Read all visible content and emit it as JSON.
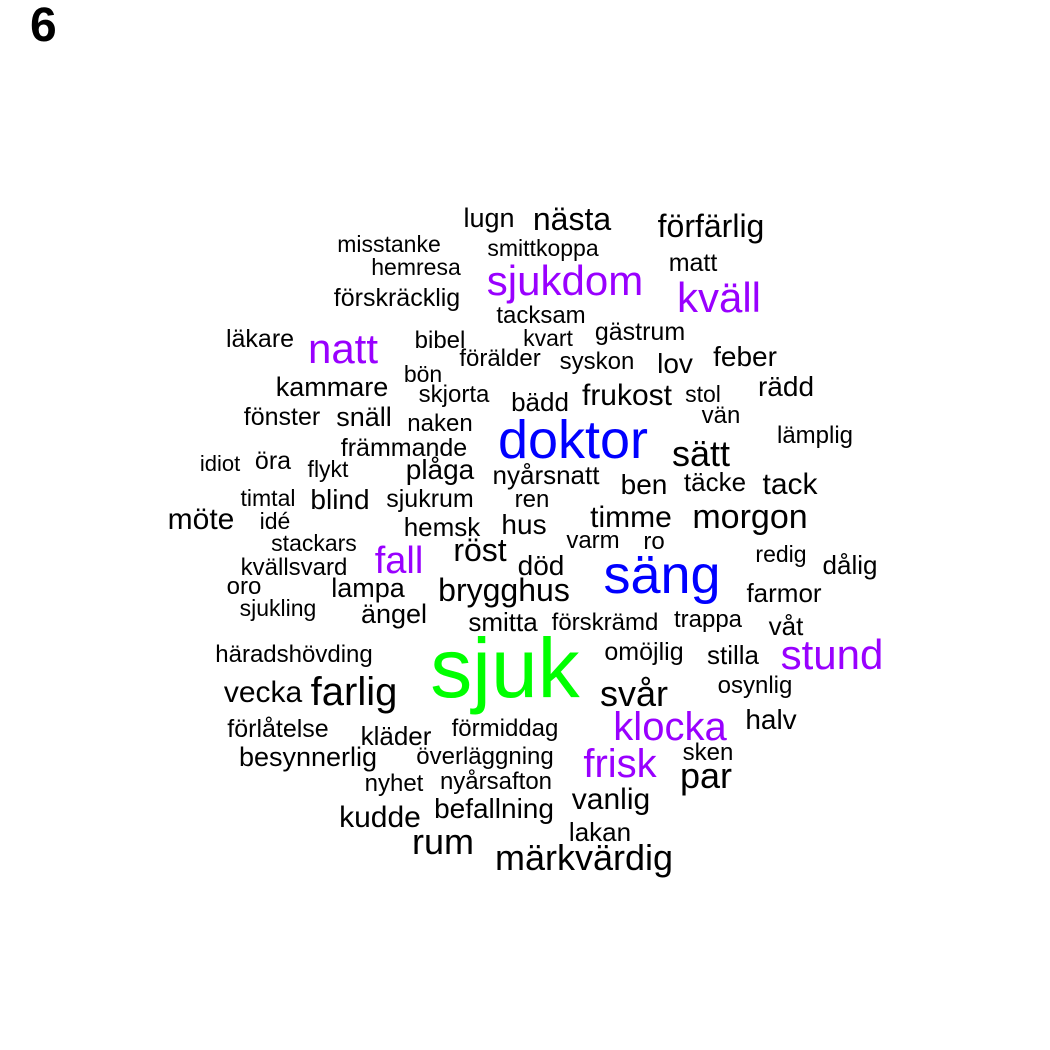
{
  "panel_label": "6",
  "colors": {
    "tier1": "#00ff00",
    "tier2": "#0000ff",
    "tier3": "#9900ff",
    "tier4": "#000000"
  },
  "words": [
    {
      "text": "sjuk",
      "tier": 1
    },
    {
      "text": "doktor",
      "tier": 2
    },
    {
      "text": "säng",
      "tier": 2
    },
    {
      "text": "sjukdom",
      "tier": 3
    },
    {
      "text": "kväll",
      "tier": 3
    },
    {
      "text": "natt",
      "tier": 3
    },
    {
      "text": "fall",
      "tier": 3
    },
    {
      "text": "stund",
      "tier": 3
    },
    {
      "text": "klocka",
      "tier": 3
    },
    {
      "text": "frisk",
      "tier": 3
    },
    {
      "text": "lugn",
      "tier": 4
    },
    {
      "text": "nästa",
      "tier": 4
    },
    {
      "text": "förfärlig",
      "tier": 4
    },
    {
      "text": "misstanke",
      "tier": 4
    },
    {
      "text": "smittkoppa",
      "tier": 4
    },
    {
      "text": "hemresa",
      "tier": 4
    },
    {
      "text": "matt",
      "tier": 4
    },
    {
      "text": "förskräcklig",
      "tier": 4
    },
    {
      "text": "tacksam",
      "tier": 4
    },
    {
      "text": "läkare",
      "tier": 4
    },
    {
      "text": "bibel",
      "tier": 4
    },
    {
      "text": "kvart",
      "tier": 4
    },
    {
      "text": "gästrum",
      "tier": 4
    },
    {
      "text": "förälder",
      "tier": 4
    },
    {
      "text": "syskon",
      "tier": 4
    },
    {
      "text": "lov",
      "tier": 4
    },
    {
      "text": "feber",
      "tier": 4
    },
    {
      "text": "bön",
      "tier": 4
    },
    {
      "text": "kammare",
      "tier": 4
    },
    {
      "text": "skjorta",
      "tier": 4
    },
    {
      "text": "bädd",
      "tier": 4
    },
    {
      "text": "frukost",
      "tier": 4
    },
    {
      "text": "stol",
      "tier": 4
    },
    {
      "text": "rädd",
      "tier": 4
    },
    {
      "text": "fönster",
      "tier": 4
    },
    {
      "text": "snäll",
      "tier": 4
    },
    {
      "text": "naken",
      "tier": 4
    },
    {
      "text": "vän",
      "tier": 4
    },
    {
      "text": "främmande",
      "tier": 4
    },
    {
      "text": "lämplig",
      "tier": 4
    },
    {
      "text": "sätt",
      "tier": 4
    },
    {
      "text": "idiot",
      "tier": 4
    },
    {
      "text": "öra",
      "tier": 4
    },
    {
      "text": "flykt",
      "tier": 4
    },
    {
      "text": "plåga",
      "tier": 4
    },
    {
      "text": "nyårsnatt",
      "tier": 4
    },
    {
      "text": "ben",
      "tier": 4
    },
    {
      "text": "täcke",
      "tier": 4
    },
    {
      "text": "tack",
      "tier": 4
    },
    {
      "text": "timtal",
      "tier": 4
    },
    {
      "text": "blind",
      "tier": 4
    },
    {
      "text": "sjukrum",
      "tier": 4
    },
    {
      "text": "ren",
      "tier": 4
    },
    {
      "text": "möte",
      "tier": 4
    },
    {
      "text": "idé",
      "tier": 4
    },
    {
      "text": "hemsk",
      "tier": 4
    },
    {
      "text": "hus",
      "tier": 4
    },
    {
      "text": "timme",
      "tier": 4
    },
    {
      "text": "morgon",
      "tier": 4
    },
    {
      "text": "stackars",
      "tier": 4
    },
    {
      "text": "röst",
      "tier": 4
    },
    {
      "text": "varm",
      "tier": 4
    },
    {
      "text": "ro",
      "tier": 4
    },
    {
      "text": "redig",
      "tier": 4
    },
    {
      "text": "kvällsvard",
      "tier": 4
    },
    {
      "text": "död",
      "tier": 4
    },
    {
      "text": "dålig",
      "tier": 4
    },
    {
      "text": "oro",
      "tier": 4
    },
    {
      "text": "lampa",
      "tier": 4
    },
    {
      "text": "brygghus",
      "tier": 4
    },
    {
      "text": "farmor",
      "tier": 4
    },
    {
      "text": "sjukling",
      "tier": 4
    },
    {
      "text": "ängel",
      "tier": 4
    },
    {
      "text": "smitta",
      "tier": 4
    },
    {
      "text": "förskrämd",
      "tier": 4
    },
    {
      "text": "trappa",
      "tier": 4
    },
    {
      "text": "våt",
      "tier": 4
    },
    {
      "text": "häradshövding",
      "tier": 4
    },
    {
      "text": "omöjlig",
      "tier": 4
    },
    {
      "text": "stilla",
      "tier": 4
    },
    {
      "text": "vecka",
      "tier": 4
    },
    {
      "text": "farlig",
      "tier": 4
    },
    {
      "text": "svår",
      "tier": 4
    },
    {
      "text": "osynlig",
      "tier": 4
    },
    {
      "text": "förlåtelse",
      "tier": 4
    },
    {
      "text": "förmiddag",
      "tier": 4
    },
    {
      "text": "halv",
      "tier": 4
    },
    {
      "text": "kläder",
      "tier": 4
    },
    {
      "text": "besynnerlig",
      "tier": 4
    },
    {
      "text": "överläggning",
      "tier": 4
    },
    {
      "text": "sken",
      "tier": 4
    },
    {
      "text": "nyhet",
      "tier": 4
    },
    {
      "text": "nyårsafton",
      "tier": 4
    },
    {
      "text": "par",
      "tier": 4
    },
    {
      "text": "befallning",
      "tier": 4
    },
    {
      "text": "vanlig",
      "tier": 4
    },
    {
      "text": "kudde",
      "tier": 4
    },
    {
      "text": "lakan",
      "tier": 4
    },
    {
      "text": "rum",
      "tier": 4
    },
    {
      "text": "märkvärdig",
      "tier": 4
    }
  ]
}
